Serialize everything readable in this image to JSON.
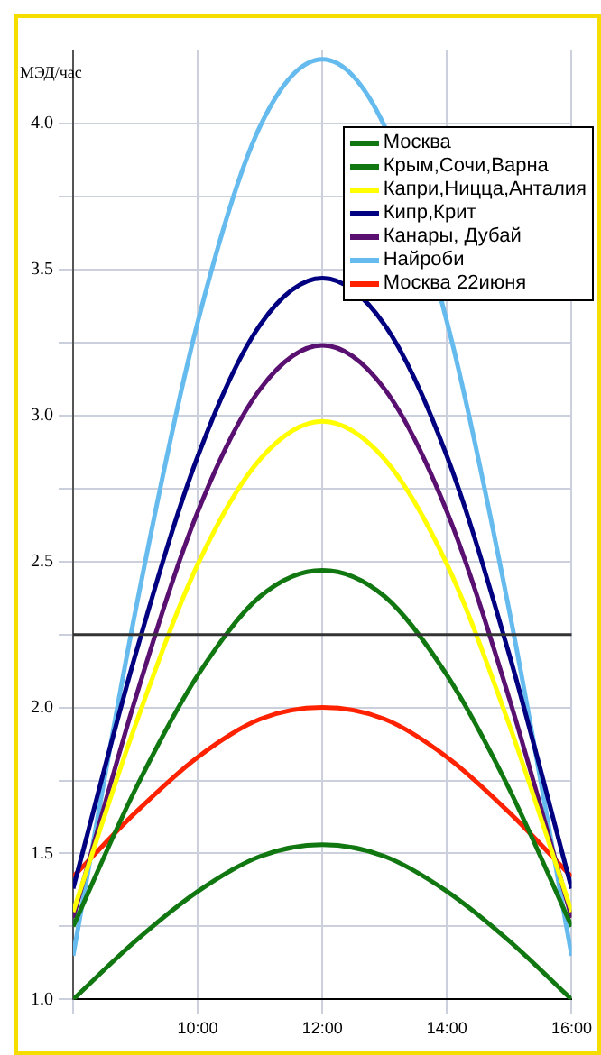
{
  "chart_data": {
    "type": "line",
    "ylabel": "МЭД/час",
    "x": [
      8,
      9,
      10,
      11,
      12,
      13,
      14,
      15,
      16
    ],
    "series": [
      {
        "name": "Москва",
        "color": "#117711",
        "values": [
          1.0,
          1.2,
          1.37,
          1.49,
          1.53,
          1.49,
          1.37,
          1.2,
          1.0
        ]
      },
      {
        "name": "Крым,Сочи,Варна",
        "color": "#117711",
        "values": [
          1.25,
          1.72,
          2.11,
          2.38,
          2.47,
          2.38,
          2.11,
          1.72,
          1.25
        ]
      },
      {
        "name": "Капри,Ницца,Анталия",
        "color": "#ffff00",
        "values": [
          1.3,
          1.94,
          2.49,
          2.85,
          2.98,
          2.85,
          2.49,
          1.94,
          1.3
        ]
      },
      {
        "name": "Кипр,Крит",
        "color": "#000080",
        "values": [
          1.38,
          2.18,
          2.86,
          3.31,
          3.47,
          3.31,
          2.86,
          2.18,
          1.38
        ]
      },
      {
        "name": "Канары, Дубай",
        "color": "#5a1070",
        "values": [
          1.28,
          2.03,
          2.67,
          3.09,
          3.24,
          3.09,
          2.67,
          2.03,
          1.28
        ]
      },
      {
        "name": "Найроби",
        "color": "#66bbee",
        "values": [
          1.15,
          2.33,
          3.32,
          3.99,
          4.22,
          3.99,
          3.32,
          2.33,
          1.15
        ]
      },
      {
        "name": "Москва 22июня",
        "color": "#ff2200",
        "values": [
          1.42,
          1.64,
          1.83,
          1.96,
          2.0,
          1.96,
          1.83,
          1.64,
          1.42
        ]
      }
    ],
    "xlim": [
      8,
      16
    ],
    "xticks": [
      {
        "value": 8,
        "label": null
      },
      {
        "value": 10,
        "label": "10:00"
      },
      {
        "value": 12,
        "label": "12:00"
      },
      {
        "value": 14,
        "label": "14:00"
      },
      {
        "value": 16,
        "label": "16:00"
      }
    ],
    "ylim": [
      1.0,
      4.25
    ],
    "yticks": [
      {
        "value": 1.0,
        "label": "1.0"
      },
      {
        "value": 1.25,
        "label": null
      },
      {
        "value": 1.5,
        "label": "1.5"
      },
      {
        "value": 1.75,
        "label": null
      },
      {
        "value": 2.0,
        "label": "2.0"
      },
      {
        "value": 2.25,
        "label": null
      },
      {
        "value": 2.5,
        "label": "2.5"
      },
      {
        "value": 2.75,
        "label": null
      },
      {
        "value": 3.0,
        "label": "3.0"
      },
      {
        "value": 3.25,
        "label": null
      },
      {
        "value": 3.5,
        "label": "3.5"
      },
      {
        "value": 3.75,
        "label": null
      },
      {
        "value": 4.0,
        "label": "4.0"
      }
    ],
    "ref_lines": [
      {
        "axis": "y",
        "value": 2.25,
        "color": "#333333"
      }
    ],
    "grid": true,
    "legend": "top right",
    "marker": "none",
    "line_style": "solid"
  }
}
